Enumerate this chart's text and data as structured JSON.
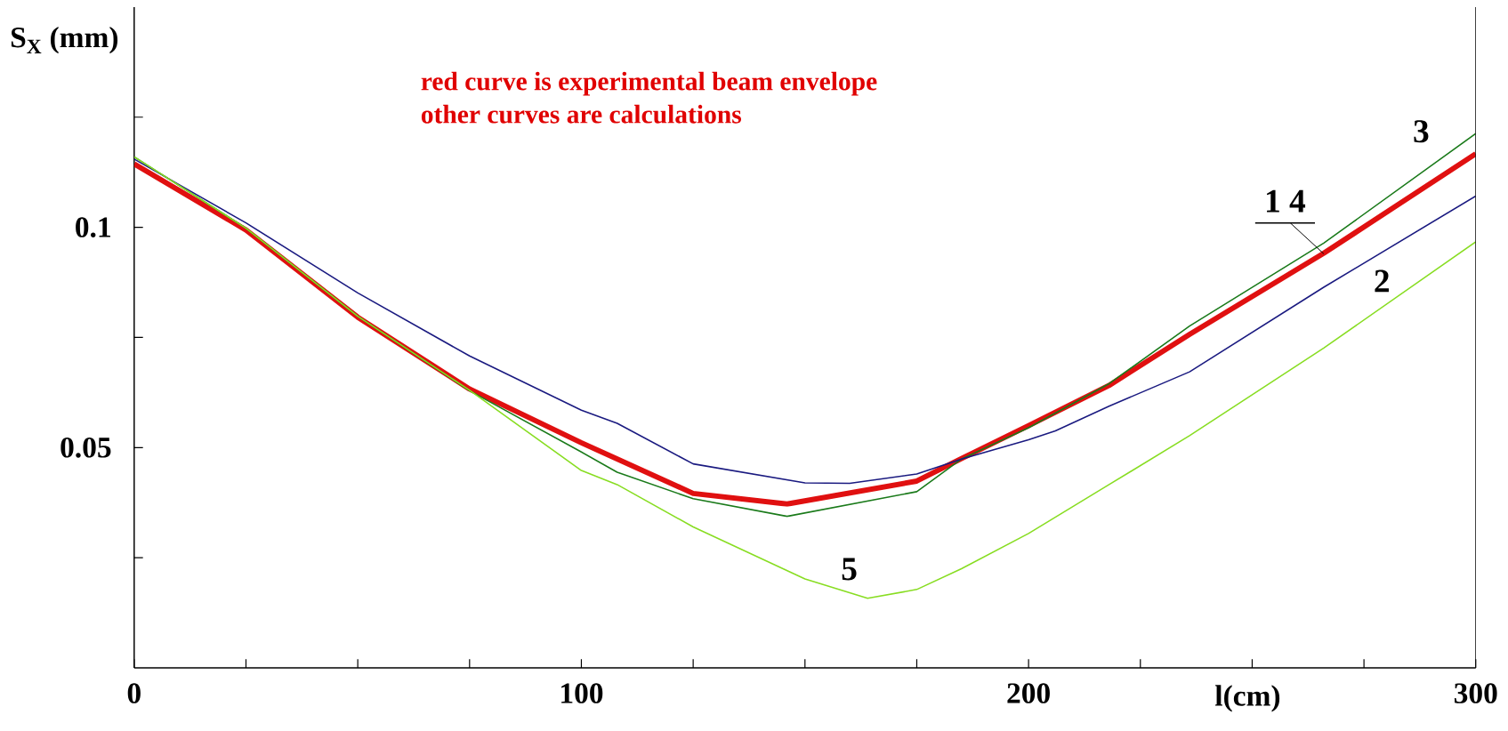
{
  "chart_data": {
    "type": "line",
    "xlabel": "l(cm)",
    "ylabel": "S$_{X}$ (mm)",
    "annotations": [
      "red curve is experimental beam envelope",
      "other curves are calculations",
      {
        "text": "1 4",
        "x": 266,
        "y": 0.094
      }
    ],
    "xlim": [
      0,
      300
    ],
    "ylim": [
      0,
      0.15
    ],
    "xticks": [
      0,
      {
        "value": 25,
        "label": null
      },
      {
        "value": 50,
        "label": null
      },
      {
        "value": 75,
        "label": null
      },
      100,
      {
        "value": 125,
        "label": null
      },
      {
        "value": 150,
        "label": null
      },
      {
        "value": 175,
        "label": null
      },
      200,
      {
        "value": 225,
        "label": null
      },
      {
        "value": 250,
        "label": null
      },
      {
        "value": 275,
        "label": null
      },
      300
    ],
    "yticks": [
      {
        "value": 0.025,
        "label": null
      },
      0.05,
      {
        "value": 0.075,
        "label": null
      },
      0.1,
      {
        "value": 0.125,
        "label": null
      }
    ],
    "series": [
      {
        "color": "#e01010",
        "x": [
          0,
          25,
          50,
          75,
          100,
          125,
          146,
          175,
          185,
          200,
          218,
          236,
          266,
          300
        ],
        "values": [
          0.1144,
          0.0994,
          0.0796,
          0.0633,
          0.0511,
          0.0396,
          0.0372,
          0.0424,
          0.0475,
          0.055,
          0.0641,
          0.0757,
          0.0941,
          0.1167
        ]
      },
      {
        "name": "3",
        "color": "#1a7a1a",
        "x": [
          0,
          25,
          50,
          75,
          100,
          108,
          125,
          146,
          175,
          185,
          200,
          218,
          236,
          266,
          300
        ],
        "values": [
          0.116,
          0.0998,
          0.0798,
          0.0629,
          0.049,
          0.0444,
          0.0384,
          0.0344,
          0.04,
          0.0474,
          0.0545,
          0.0645,
          0.0776,
          0.0964,
          0.1213
        ]
      },
      {
        "name": "2",
        "color": "#1a1a80",
        "x": [
          0,
          25,
          50,
          75,
          100,
          108,
          125,
          150,
          160,
          175,
          185,
          200,
          206,
          218,
          236,
          266,
          300
        ],
        "values": [
          0.1155,
          0.101,
          0.0851,
          0.0708,
          0.0585,
          0.0555,
          0.0463,
          0.042,
          0.0419,
          0.044,
          0.0474,
          0.0518,
          0.0538,
          0.0594,
          0.0672,
          0.0864,
          0.1071
        ]
      },
      {
        "name": "5",
        "color": "#88dd22",
        "x": [
          0,
          25,
          50,
          75,
          100,
          108,
          125,
          150,
          164,
          175,
          185,
          200,
          218,
          236,
          266,
          300
        ],
        "values": [
          0.116,
          0.0998,
          0.0798,
          0.063,
          0.0448,
          0.0416,
          0.032,
          0.0202,
          0.0158,
          0.0178,
          0.0225,
          0.0305,
          0.0416,
          0.0527,
          0.0726,
          0.0967
        ]
      }
    ]
  }
}
